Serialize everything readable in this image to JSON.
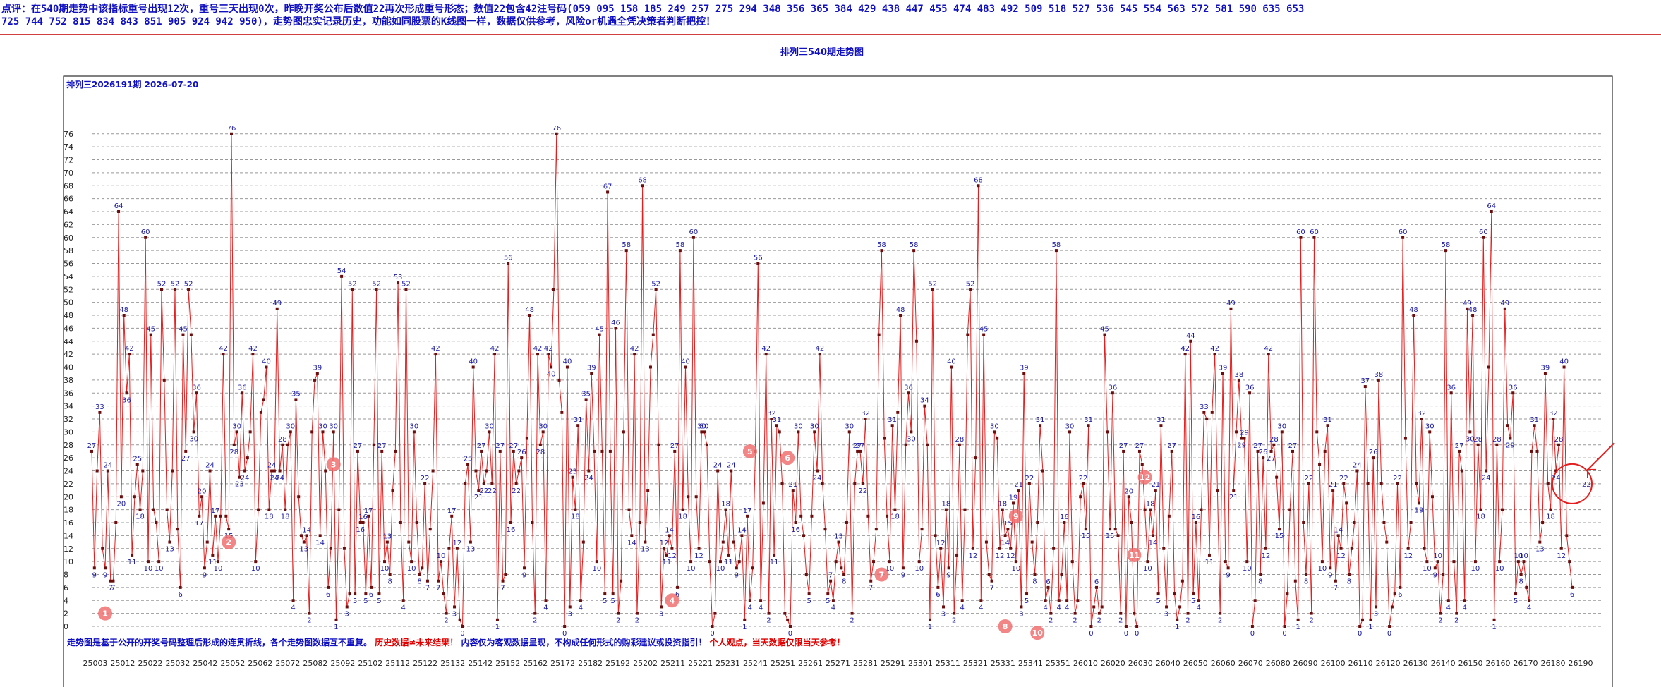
{
  "header": {
    "line1": "点评：在540期走势中该指标重号出现12次，重号三天出现0次，昨晚开奖公布后数值22再次形成重号形态；数值22包含42注号码(059 095 158 185 249 257 275 294 348 356 365 384 429 438 447 455 474 483 492 509 518 527 536 545 554 563 572 581 590 635 653",
    "line2": "725 744 752 815 834 843 851 905 924 942 950)，走势图忠实记录历史，功能如同股票的K线图一样，数据仅供参考，风险or机遇全凭决策者判断把控！"
  },
  "colors": {
    "line": "#e41e1e",
    "point": "#6b0d0d",
    "label": "#1a1aa0",
    "axis": "#000000",
    "grid": "#999999",
    "marker_fill": "#f07070",
    "header_text": "#1010c0",
    "footer_blue": "#1010c0",
    "footer_red": "#e00000"
  },
  "chart_data": {
    "type": "line",
    "title": "排列三540期走势图",
    "subtitle": "排列三2026191期 2026-07-20",
    "ylim": [
      0,
      80
    ],
    "yticks": [
      0,
      2,
      4,
      6,
      8,
      10,
      12,
      14,
      16,
      18,
      20,
      22,
      24,
      26,
      28,
      30,
      32,
      34,
      36,
      38,
      40,
      42,
      44,
      46,
      48,
      50,
      52,
      54,
      56,
      58,
      60,
      62,
      64,
      66,
      68,
      70,
      72,
      74,
      76
    ],
    "grid": true,
    "series_count": 540,
    "xtick_labels": [
      "25003",
      "25012",
      "25022",
      "25032",
      "25042",
      "25052",
      "25062",
      "25072",
      "25082",
      "25092",
      "25102",
      "25112",
      "25122",
      "25132",
      "25142",
      "25152",
      "25162",
      "25172",
      "25182",
      "25192",
      "25202",
      "25211",
      "25221",
      "25231",
      "25241",
      "25251",
      "25261",
      "25271",
      "25281",
      "25291",
      "25301",
      "25311",
      "25321",
      "25331",
      "25341",
      "25351",
      "26010",
      "26020",
      "26030",
      "26040",
      "26050",
      "26060",
      "26070",
      "26080",
      "26090",
      "26100",
      "26110",
      "26120",
      "26130",
      "26140",
      "26150",
      "26160",
      "26170",
      "26180",
      "26190"
    ],
    "values": [
      27,
      9,
      24,
      33,
      12,
      9,
      24,
      7,
      7,
      16,
      64,
      20,
      48,
      36,
      42,
      11,
      20,
      25,
      18,
      24,
      60,
      10,
      45,
      18,
      16,
      10,
      52,
      38,
      18,
      13,
      24,
      52,
      15,
      6,
      45,
      27,
      52,
      45,
      30,
      36,
      17,
      20,
      9,
      13,
      24,
      11,
      17,
      10,
      17,
      42,
      17,
      15,
      76,
      28,
      30,
      23,
      36,
      24,
      26,
      30,
      42,
      10,
      18,
      33,
      35,
      40,
      18,
      24,
      24,
      49,
      24,
      28,
      18,
      28,
      30,
      4,
      35,
      20,
      14,
      13,
      14,
      2,
      30,
      38,
      39,
      14,
      30,
      24,
      6,
      12,
      30,
      1,
      18,
      54,
      12,
      3,
      5,
      52,
      5,
      27,
      16,
      16,
      5,
      17,
      6,
      28,
      52,
      5,
      27,
      10,
      13,
      8,
      21,
      27,
      53,
      16,
      4,
      52,
      13,
      10,
      30,
      16,
      8,
      9,
      22,
      7,
      15,
      24,
      42,
      7,
      10,
      5,
      2,
      12,
      17,
      3,
      12,
      1,
      0,
      22,
      25,
      13,
      40,
      24,
      21,
      27,
      22,
      24,
      30,
      22,
      42,
      1,
      27,
      7,
      8,
      56,
      16,
      27,
      22,
      24,
      26,
      9,
      29,
      48,
      16,
      2,
      42,
      28,
      30,
      4,
      42,
      40,
      52,
      76,
      38,
      33,
      0,
      40,
      3,
      23,
      18,
      31,
      4,
      13,
      35,
      24,
      39,
      27,
      10,
      45,
      27,
      5,
      67,
      27,
      5,
      46,
      2,
      7,
      30,
      58,
      18,
      14,
      42,
      2,
      16,
      68,
      13,
      21,
      40,
      45,
      52,
      28,
      3,
      12,
      11,
      14,
      12,
      27,
      6,
      58,
      18,
      40,
      20,
      10,
      60,
      20,
      12,
      30,
      30,
      28,
      10,
      0,
      2,
      24,
      10,
      13,
      18,
      11,
      24,
      13,
      9,
      10,
      14,
      1,
      17,
      4,
      9,
      27,
      56,
      4,
      19,
      42,
      2,
      32,
      11,
      31,
      30,
      22,
      2,
      1,
      0,
      21,
      16,
      30,
      17,
      14,
      8,
      5,
      17,
      30,
      24,
      42,
      22,
      15,
      5,
      7,
      4,
      10,
      13,
      9,
      8,
      16,
      30,
      2,
      22,
      27,
      27,
      22,
      32,
      17,
      7,
      10,
      15,
      45,
      58,
      29,
      17,
      10,
      31,
      18,
      33,
      48,
      9,
      28,
      36,
      30,
      58,
      44,
      10,
      15,
      34,
      28,
      1,
      52,
      14,
      6,
      12,
      3,
      18,
      9,
      40,
      2,
      11,
      28,
      4,
      18,
      45,
      52,
      12,
      26,
      68,
      4,
      45,
      13,
      8,
      7,
      30,
      29,
      12,
      18,
      14,
      15,
      12,
      19,
      10,
      21,
      3,
      39,
      5,
      22,
      13,
      8,
      16,
      31,
      24,
      4,
      6,
      2,
      12,
      58,
      4,
      8,
      16,
      4,
      30,
      10,
      2,
      4,
      20,
      22,
      15,
      31,
      0,
      3,
      6,
      2,
      3,
      45,
      30,
      15,
      36,
      15,
      14,
      2,
      27,
      0,
      20,
      16,
      2,
      0,
      27,
      25,
      18,
      10,
      18,
      14,
      21,
      5,
      31,
      12,
      3,
      17,
      27,
      5,
      1,
      3,
      7,
      42,
      2,
      44,
      5,
      16,
      4,
      18,
      33,
      32,
      11,
      33,
      42,
      21,
      2,
      39,
      10,
      9,
      49,
      21,
      30,
      38,
      29,
      29,
      10,
      36,
      0,
      4,
      27,
      8,
      26,
      12,
      42,
      27,
      28,
      23,
      15,
      30,
      0,
      5,
      18,
      27,
      7,
      1,
      60,
      16,
      8,
      22,
      2,
      60,
      30,
      25,
      10,
      27,
      31,
      9,
      21,
      7,
      14,
      12,
      22,
      19,
      8,
      12,
      16,
      24,
      0,
      1,
      37,
      22,
      1,
      26,
      3,
      38,
      22,
      16,
      13,
      0,
      3,
      5,
      22,
      6,
      60,
      29,
      12,
      16,
      48,
      22,
      19,
      32,
      12,
      10,
      30,
      20,
      9,
      10,
      2,
      8,
      58,
      4,
      36,
      10,
      2,
      27,
      24,
      4,
      49,
      30,
      48,
      10,
      28,
      18,
      60,
      24,
      40,
      64,
      1,
      28,
      10,
      18,
      49,
      31,
      29,
      36,
      5,
      10,
      8,
      10,
      6,
      4,
      27,
      31,
      27,
      13,
      16,
      39,
      22,
      18,
      32,
      24,
      28,
      12,
      40,
      14,
      10,
      6
    ],
    "markers": [
      {
        "label": "1",
        "index": 5,
        "value": 2
      },
      {
        "label": "2",
        "index": 51,
        "value": 13
      },
      {
        "label": "3",
        "index": 90,
        "value": 25
      },
      {
        "label": "4",
        "index": 216,
        "value": 4
      },
      {
        "label": "5",
        "index": 245,
        "value": 27
      },
      {
        "label": "6",
        "index": 259,
        "value": 26
      },
      {
        "label": "7",
        "index": 294,
        "value": 8
      },
      {
        "label": "8",
        "index": 340,
        "value": 0
      },
      {
        "label": "9",
        "index": 344,
        "value": 17
      },
      {
        "label": "10",
        "index": 352,
        "value": -1
      },
      {
        "label": "11",
        "index": 388,
        "value": 11
      },
      {
        "label": "12",
        "index": 392,
        "value": 23
      }
    ],
    "highlight": {
      "value": 22,
      "label": "22"
    }
  },
  "footer": {
    "part1": "走势图是基于公开的开奖号码整理后形成的连贯折线，各个走势图数据互不重复。",
    "part2": "历史数据≠未来结果！",
    "part3": "内容仅为客观数据呈现，不构成任何形式的购彩建议或投资指引！",
    "part4": "个人观点，当天数据仅限当天参考！"
  }
}
